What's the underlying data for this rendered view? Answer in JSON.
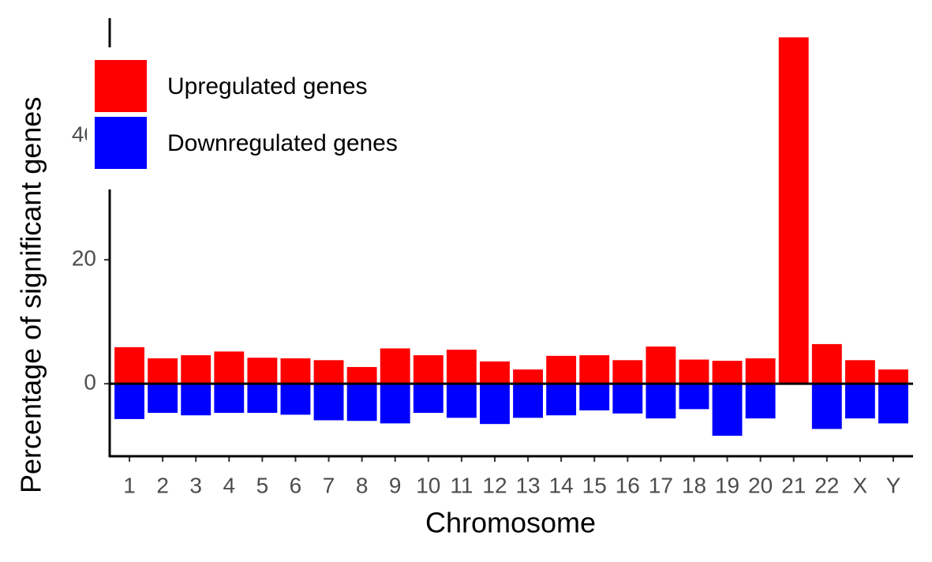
{
  "chart_data": {
    "type": "bar",
    "x_label": "Chromosome",
    "y_label": "Percentage of significant genes",
    "categories": [
      "1",
      "2",
      "3",
      "4",
      "5",
      "6",
      "7",
      "8",
      "9",
      "10",
      "11",
      "12",
      "13",
      "14",
      "15",
      "16",
      "17",
      "18",
      "19",
      "20",
      "21",
      "22",
      "X",
      "Y"
    ],
    "series": [
      {
        "name": "Upregulated genes",
        "color": "#ff0000",
        "values": [
          5.9,
          4.1,
          4.6,
          5.2,
          4.2,
          4.1,
          3.8,
          2.7,
          5.7,
          4.6,
          5.5,
          3.6,
          2.3,
          4.5,
          4.6,
          3.8,
          6.0,
          3.9,
          3.7,
          4.1,
          55.9,
          6.4,
          3.8,
          2.3
        ]
      },
      {
        "name": "Downregulated genes",
        "color": "#0000ff",
        "values": [
          -5.7,
          -4.7,
          -5.1,
          -4.7,
          -4.7,
          -5.0,
          -5.9,
          -6.0,
          -6.4,
          -4.7,
          -5.5,
          -6.5,
          -5.5,
          -5.1,
          -4.3,
          -4.8,
          -5.6,
          -4.1,
          -8.4,
          -5.6,
          null,
          -7.3,
          -5.6,
          -6.4
        ]
      }
    ],
    "ylim": [
      -11.7,
      59
    ],
    "yticks": [
      0,
      20,
      40
    ],
    "legend": "top-left"
  }
}
